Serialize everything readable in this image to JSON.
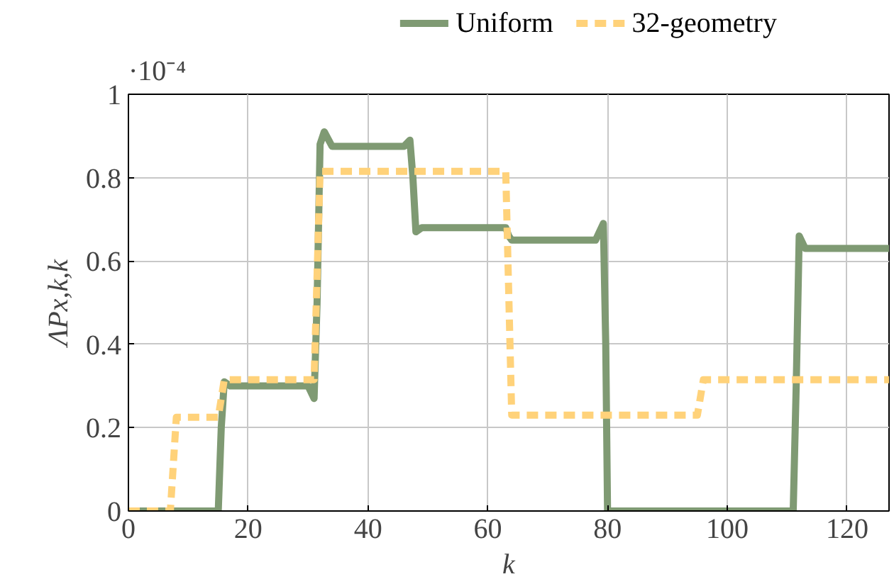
{
  "chart_data": {
    "type": "line",
    "xlabel": "k",
    "ylabel": "ΛPx,k,k",
    "annotations": [
      "·10⁻⁴"
    ],
    "xlim": [
      0,
      127
    ],
    "ylim": [
      0,
      1
    ],
    "xticks": [
      0,
      20,
      40,
      60,
      80,
      100,
      120
    ],
    "yticks": [
      0,
      0.2,
      0.4,
      0.6,
      0.8,
      1
    ],
    "grid": true,
    "legend": "top",
    "marker": "none",
    "series": [
      {
        "name": "Uniform",
        "color": "#7f9a73",
        "line_style": "solid",
        "x": [
          0,
          15,
          15.5,
          16,
          17,
          30,
          31,
          31.5,
          32,
          32.7,
          34,
          46,
          47,
          47.5,
          48,
          49,
          63,
          63.5,
          64,
          78,
          79.3,
          79.7,
          80,
          111,
          111.5,
          112,
          113,
          127
        ],
        "values": [
          0,
          0,
          0.2,
          0.31,
          0.3,
          0.3,
          0.27,
          0.5,
          0.88,
          0.91,
          0.875,
          0.875,
          0.89,
          0.8,
          0.67,
          0.68,
          0.68,
          0.66,
          0.65,
          0.65,
          0.69,
          0.4,
          0,
          0,
          0.3,
          0.66,
          0.63,
          0.63
        ]
      },
      {
        "name": "32-geometry",
        "color": "#ffd27a",
        "line_style": "dashed",
        "x": [
          0,
          7,
          8,
          15,
          16,
          31,
          32,
          63,
          64,
          95,
          96,
          127
        ],
        "values": [
          0,
          0,
          0.225,
          0.225,
          0.315,
          0.315,
          0.815,
          0.815,
          0.23,
          0.23,
          0.315,
          0.315
        ]
      }
    ]
  }
}
